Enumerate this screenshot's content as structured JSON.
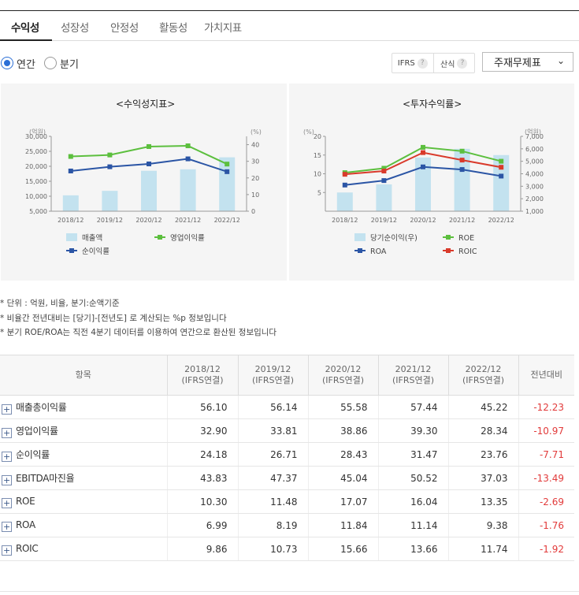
{
  "tabs": [
    {
      "label": "수익성",
      "active": true
    },
    {
      "label": "성장성"
    },
    {
      "label": "안정성"
    },
    {
      "label": "활동성"
    },
    {
      "label": "가치지표"
    }
  ],
  "period": {
    "annual": "연간",
    "quarter": "분기",
    "selected": "annual"
  },
  "buttons": {
    "ifrs": "IFRS",
    "formula": "산식",
    "help_mark": "?"
  },
  "select": {
    "value": "주재무제표",
    "chevron": "⌄"
  },
  "chart_data": [
    {
      "type": "bar+line",
      "title": "<수익성지표>",
      "categories": [
        "2018/12",
        "2019/12",
        "2020/12",
        "2021/12",
        "2022/12"
      ],
      "left_unit": "(억원)",
      "right_unit": "(%)",
      "left_ticks": [
        "30,000",
        "25,000",
        "20,000",
        "15,000",
        "10,000",
        "5,000"
      ],
      "left_range": [
        5000,
        30000
      ],
      "right_ticks": [
        "40",
        "30",
        "20",
        "10",
        "0"
      ],
      "right_range": [
        0,
        45
      ],
      "series": [
        {
          "name": "매출액",
          "kind": "bar",
          "axis": "left",
          "color": "#c3e2ef",
          "values": [
            10300,
            11800,
            18500,
            19000,
            23000
          ]
        },
        {
          "name": "영업이익률",
          "kind": "line",
          "axis": "right",
          "color": "#5cbf3e",
          "values": [
            32.9,
            33.81,
            38.86,
            39.3,
            28.34
          ]
        },
        {
          "name": "순이익률",
          "kind": "line",
          "axis": "right",
          "color": "#2b55a5",
          "values": [
            24.18,
            26.71,
            28.43,
            31.47,
            23.76
          ]
        }
      ]
    },
    {
      "type": "bar+line",
      "title": "<투자수익률>",
      "categories": [
        "2018/12",
        "2019/12",
        "2020/12",
        "2021/12",
        "2022/12"
      ],
      "left_unit": "(%)",
      "right_unit": "(억원)",
      "left_ticks": [
        "20",
        "15",
        "10",
        "5"
      ],
      "left_range": [
        0,
        20
      ],
      "right_ticks": [
        "7,000",
        "6,000",
        "5,000",
        "4,000",
        "3,000",
        "2,000",
        "1,000"
      ],
      "right_range": [
        1000,
        7000
      ],
      "series": [
        {
          "name": "당기순이익(우)",
          "kind": "bar",
          "axis": "right",
          "color": "#c3e2ef",
          "values": [
            2500,
            3150,
            5300,
            6000,
            5500
          ]
        },
        {
          "name": "ROE",
          "kind": "line",
          "axis": "left",
          "color": "#5cbf3e",
          "values": [
            10.3,
            11.48,
            17.07,
            16.04,
            13.35
          ]
        },
        {
          "name": "ROA",
          "kind": "line",
          "axis": "left",
          "color": "#2b55a5",
          "values": [
            6.99,
            8.19,
            11.84,
            11.14,
            9.38
          ]
        },
        {
          "name": "ROIC",
          "kind": "line",
          "axis": "left",
          "color": "#d93a2b",
          "values": [
            9.86,
            10.73,
            15.66,
            13.66,
            11.74
          ]
        }
      ]
    }
  ],
  "notes": [
    "* 단위 : 억원, 비율, 분기:순액기준",
    "* 비율간 전년대비는 [당기]-[전년도] 로 계산되는 %p 정보입니다",
    "* 분기 ROE/ROA는 직전 4분기 데이터를 이용하여 연간으로 환산된 정보입니다"
  ],
  "table": {
    "headers": [
      {
        "top": "항목"
      },
      {
        "top": "2018/12",
        "sub": "(IFRS연결)"
      },
      {
        "top": "2019/12",
        "sub": "(IFRS연결)"
      },
      {
        "top": "2020/12",
        "sub": "(IFRS연결)"
      },
      {
        "top": "2021/12",
        "sub": "(IFRS연결)"
      },
      {
        "top": "2022/12",
        "sub": "(IFRS연결)"
      },
      {
        "top": "전년대비"
      }
    ],
    "rows": [
      {
        "name": "매출총이익률",
        "values": [
          "56.10",
          "56.14",
          "55.58",
          "57.44",
          "45.22",
          "-12.23"
        ]
      },
      {
        "name": "영업이익률",
        "values": [
          "32.90",
          "33.81",
          "38.86",
          "39.30",
          "28.34",
          "-10.97"
        ]
      },
      {
        "name": "순이익률",
        "values": [
          "24.18",
          "26.71",
          "28.43",
          "31.47",
          "23.76",
          "-7.71"
        ]
      },
      {
        "name": "EBITDA마진율",
        "values": [
          "43.83",
          "47.37",
          "45.04",
          "50.52",
          "37.03",
          "-13.49"
        ]
      },
      {
        "name": "ROE",
        "values": [
          "10.30",
          "11.48",
          "17.07",
          "16.04",
          "13.35",
          "-2.69"
        ]
      },
      {
        "name": "ROA",
        "values": [
          "6.99",
          "8.19",
          "11.84",
          "11.14",
          "9.38",
          "-1.76"
        ]
      },
      {
        "name": "ROIC",
        "values": [
          "9.86",
          "10.73",
          "15.66",
          "13.66",
          "11.74",
          "-1.92"
        ]
      }
    ],
    "expand_mark": "+"
  }
}
